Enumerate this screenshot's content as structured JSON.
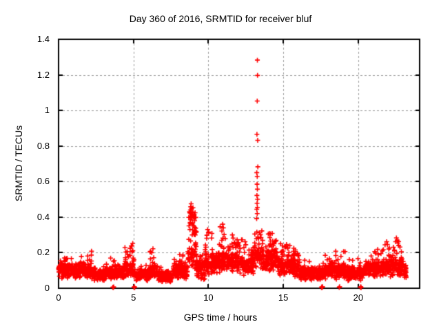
{
  "chart_data": {
    "type": "scatter",
    "title": "Day 360 of 2016, SRMTID for receiver bluf",
    "xlabel": "GPS time / hours",
    "ylabel": "SRMTID / TECUs",
    "xlim": [
      0,
      24.1
    ],
    "ylim": [
      0,
      1.4
    ],
    "xticks": [
      0,
      5,
      10,
      15,
      20
    ],
    "yticks": [
      0,
      0.2,
      0.4,
      0.6,
      0.8,
      1,
      1.2,
      1.4
    ],
    "xtick_labels": [
      "0",
      "5",
      "10",
      "15",
      "20"
    ],
    "ytick_labels": [
      "0",
      "0.2",
      "0.4",
      "0.6",
      "0.8",
      "1",
      "1.2",
      "1.4"
    ],
    "grid": {
      "style": "dashed",
      "color": "#9c9c9c"
    },
    "border_color": "#000000",
    "legend": "none",
    "series": [
      {
        "name": "SRMTID",
        "marker": "+",
        "color": "#ff0000",
        "marker_size": 7,
        "band_density_per_hour": 120,
        "band_segments": [
          [
            0.0,
            0.6,
            0.05,
            0.16,
            0.2,
            0.06
          ],
          [
            0.6,
            2.2,
            0.05,
            0.15,
            0.2,
            0.05
          ],
          [
            2.2,
            3.2,
            0.04,
            0.12,
            0.16,
            0.04
          ],
          [
            3.2,
            4.4,
            0.05,
            0.13,
            0.18,
            0.05
          ],
          [
            4.4,
            5.1,
            0.05,
            0.16,
            0.24,
            0.1
          ],
          [
            5.1,
            6.1,
            0.04,
            0.12,
            0.16,
            0.04
          ],
          [
            6.1,
            6.6,
            0.05,
            0.15,
            0.21,
            0.08
          ],
          [
            6.6,
            7.6,
            0.03,
            0.1,
            0.14,
            0.04
          ],
          [
            7.6,
            8.6,
            0.05,
            0.15,
            0.19,
            0.06
          ],
          [
            8.6,
            9.2,
            0.08,
            0.3,
            0.46,
            0.28
          ],
          [
            9.2,
            9.8,
            0.04,
            0.18,
            0.24,
            0.08
          ],
          [
            9.8,
            10.4,
            0.07,
            0.21,
            0.32,
            0.1
          ],
          [
            10.4,
            11.3,
            0.08,
            0.22,
            0.35,
            0.1
          ],
          [
            11.3,
            12.3,
            0.08,
            0.22,
            0.29,
            0.09
          ],
          [
            12.3,
            13.0,
            0.07,
            0.2,
            0.27,
            0.08
          ],
          [
            13.0,
            13.6,
            0.09,
            0.26,
            0.38,
            0.18
          ],
          [
            13.6,
            14.6,
            0.09,
            0.24,
            0.31,
            0.12
          ],
          [
            14.6,
            15.5,
            0.07,
            0.2,
            0.26,
            0.08
          ],
          [
            15.5,
            16.1,
            0.06,
            0.18,
            0.23,
            0.08
          ],
          [
            16.1,
            17.7,
            0.04,
            0.13,
            0.16,
            0.03
          ],
          [
            17.7,
            19.2,
            0.05,
            0.15,
            0.21,
            0.06
          ],
          [
            19.2,
            20.4,
            0.04,
            0.13,
            0.17,
            0.04
          ],
          [
            20.4,
            21.7,
            0.06,
            0.16,
            0.22,
            0.06
          ],
          [
            21.7,
            23.0,
            0.06,
            0.18,
            0.27,
            0.1
          ],
          [
            23.0,
            23.2,
            0.05,
            0.14,
            0.16,
            0.03
          ]
        ],
        "spike_points": [
          [
            13.27,
            1.283
          ],
          [
            13.28,
            1.197
          ],
          [
            13.26,
            1.053
          ],
          [
            13.24,
            0.866
          ],
          [
            13.29,
            0.832
          ],
          [
            13.3,
            0.683
          ],
          [
            13.23,
            0.65
          ],
          [
            13.26,
            0.628
          ],
          [
            13.25,
            0.585
          ],
          [
            13.27,
            0.557
          ],
          [
            13.24,
            0.522
          ],
          [
            13.28,
            0.5
          ],
          [
            13.25,
            0.478
          ],
          [
            13.27,
            0.455
          ],
          [
            13.23,
            0.444
          ],
          [
            13.26,
            0.42
          ],
          [
            13.22,
            0.392
          ],
          [
            8.85,
            0.475
          ],
          [
            8.82,
            0.458
          ],
          [
            8.88,
            0.448
          ],
          [
            8.8,
            0.44
          ],
          [
            8.86,
            0.43
          ],
          [
            8.83,
            0.42
          ],
          [
            8.9,
            0.412
          ],
          [
            8.84,
            0.403
          ],
          [
            8.87,
            0.393
          ],
          [
            8.81,
            0.385
          ],
          [
            8.79,
            0.37
          ],
          [
            8.92,
            0.36
          ],
          [
            9.05,
            0.415
          ],
          [
            9.1,
            0.398
          ],
          [
            9.08,
            0.38
          ],
          [
            8.95,
            0.368
          ],
          [
            9.0,
            0.352
          ],
          [
            9.15,
            0.338
          ],
          [
            8.77,
            0.33
          ],
          [
            10.95,
            0.36
          ],
          [
            11.0,
            0.34
          ],
          [
            10.9,
            0.322
          ],
          [
            11.05,
            0.302
          ],
          [
            9.95,
            0.33
          ],
          [
            10.0,
            0.312
          ],
          [
            9.9,
            0.298
          ],
          [
            11.6,
            0.3
          ],
          [
            11.65,
            0.282
          ],
          [
            12.45,
            0.262
          ],
          [
            14.0,
            0.305
          ],
          [
            14.1,
            0.285
          ],
          [
            14.45,
            0.265
          ],
          [
            4.95,
            0.252
          ],
          [
            4.9,
            0.238
          ],
          [
            6.3,
            0.222
          ],
          [
            2.2,
            0.208
          ],
          [
            22.55,
            0.283
          ],
          [
            22.6,
            0.27
          ],
          [
            22.5,
            0.262
          ],
          [
            21.9,
            0.262
          ],
          [
            21.95,
            0.246
          ],
          [
            22.65,
            0.254
          ],
          [
            22.7,
            0.24
          ],
          [
            18.5,
            0.208
          ],
          [
            15.7,
            0.225
          ],
          [
            15.8,
            0.215
          ]
        ],
        "near_zero_points": [
          [
            3.62,
            0.006
          ],
          [
            3.65,
            0.004
          ],
          [
            3.68,
            0.008
          ],
          [
            5.03,
            0.005
          ],
          [
            5.06,
            0.009
          ],
          [
            5.08,
            0.004
          ],
          [
            17.55,
            0.004
          ],
          [
            17.57,
            0.008
          ],
          [
            17.6,
            0.005
          ],
          [
            17.62,
            0.009
          ],
          [
            18.73,
            0.005
          ],
          [
            18.76,
            0.009
          ],
          [
            20.15,
            0.005
          ],
          [
            20.17,
            0.009
          ],
          [
            20.2,
            0.004
          ]
        ]
      }
    ]
  }
}
